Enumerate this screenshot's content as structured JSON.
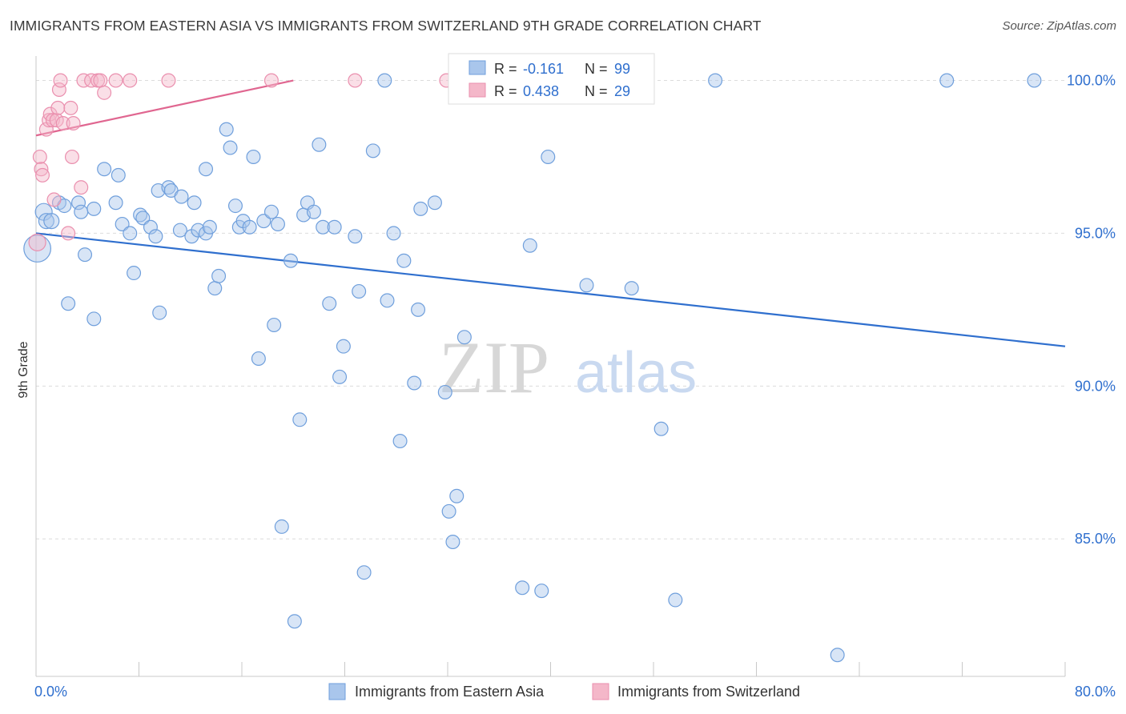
{
  "title": "IMMIGRANTS FROM EASTERN ASIA VS IMMIGRANTS FROM SWITZERLAND 9TH GRADE CORRELATION CHART",
  "source": "Source: ZipAtlas.com",
  "watermark": {
    "zip": "ZIP",
    "atlas": "atlas"
  },
  "colors": {
    "blue_fill": "#a9c6ec",
    "blue_stroke": "#6f9fdc",
    "blue_line": "#2f6fce",
    "blue_text": "#2f6fce",
    "pink_fill": "#f4b7c9",
    "pink_stroke": "#ea8fae",
    "pink_line": "#e06690",
    "pink_text": "#e06690",
    "grid": "#dcdcdc",
    "axis_label": "#2f6fce"
  },
  "stats_box": {
    "rows": [
      {
        "r_label": "R = ",
        "r_value": "-0.161",
        "n_label": "N = ",
        "n_value": "99",
        "color": "blue"
      },
      {
        "r_label": "R = ",
        "r_value": "0.438",
        "n_label": "N = ",
        "n_value": "29",
        "color": "pink"
      }
    ]
  },
  "chart_data": {
    "type": "scatter",
    "title": "IMMIGRANTS FROM EASTERN ASIA VS IMMIGRANTS FROM SWITZERLAND 9TH GRADE CORRELATION CHART",
    "xlabel": "",
    "ylabel": "9th Grade",
    "xlim": [
      0,
      80
    ],
    "ylim": [
      80.5,
      100.8
    ],
    "x_tick_labels": [
      "0.0%",
      "80.0%"
    ],
    "y_ticks": [
      85,
      90,
      95,
      100
    ],
    "y_tick_labels": [
      "85.0%",
      "90.0%",
      "95.0%",
      "100.0%"
    ],
    "grid": true,
    "legend_position": "bottom-center",
    "series": [
      {
        "name": "Immigrants from Eastern Asia",
        "color": "blue",
        "trend": {
          "x": [
            0,
            80
          ],
          "y": [
            95.0,
            91.3
          ]
        },
        "points": [
          [
            0.1,
            94.5,
            16
          ],
          [
            0.6,
            95.7,
            10
          ],
          [
            0.8,
            95.4,
            9
          ],
          [
            1.2,
            95.4,
            9
          ],
          [
            1.8,
            96.0,
            8
          ],
          [
            2.2,
            95.9,
            8
          ],
          [
            3.3,
            96.0,
            8
          ],
          [
            3.5,
            95.7,
            8
          ],
          [
            4.5,
            95.8,
            8
          ],
          [
            2.5,
            92.7,
            8
          ],
          [
            3.8,
            94.3,
            8
          ],
          [
            4.5,
            92.2,
            8
          ],
          [
            5.3,
            97.1,
            8
          ],
          [
            6.4,
            96.9,
            8
          ],
          [
            6.2,
            96.0,
            8
          ],
          [
            6.7,
            95.3,
            8
          ],
          [
            7.3,
            95.0,
            8
          ],
          [
            7.6,
            93.7,
            8
          ],
          [
            8.1,
            95.6,
            8
          ],
          [
            8.3,
            95.5,
            8
          ],
          [
            8.9,
            95.2,
            8
          ],
          [
            9.3,
            94.9,
            8
          ],
          [
            9.6,
            92.4,
            8
          ],
          [
            9.5,
            96.4,
            8
          ],
          [
            10.3,
            96.5,
            8
          ],
          [
            10.5,
            96.4,
            8
          ],
          [
            11.3,
            96.2,
            8
          ],
          [
            11.2,
            95.1,
            8
          ],
          [
            12.1,
            94.9,
            8
          ],
          [
            12.3,
            96.0,
            8
          ],
          [
            12.6,
            95.1,
            8
          ],
          [
            13.2,
            95.0,
            8
          ],
          [
            13.2,
            97.1,
            8
          ],
          [
            13.5,
            95.2,
            8
          ],
          [
            13.9,
            93.2,
            8
          ],
          [
            14.2,
            93.6,
            8
          ],
          [
            14.8,
            98.4,
            8
          ],
          [
            15.1,
            97.8,
            8
          ],
          [
            15.5,
            95.9,
            8
          ],
          [
            15.8,
            95.2,
            8
          ],
          [
            16.1,
            95.4,
            8
          ],
          [
            16.6,
            95.2,
            8
          ],
          [
            16.9,
            97.5,
            8
          ],
          [
            17.3,
            90.9,
            8
          ],
          [
            17.7,
            95.4,
            8
          ],
          [
            18.3,
            95.7,
            8
          ],
          [
            18.5,
            92.0,
            8
          ],
          [
            18.8,
            95.3,
            8
          ],
          [
            19.8,
            94.1,
            8
          ],
          [
            20.5,
            88.9,
            8
          ],
          [
            20.8,
            95.6,
            8
          ],
          [
            21.1,
            96.0,
            8
          ],
          [
            21.6,
            95.7,
            8
          ],
          [
            22.0,
            97.9,
            8
          ],
          [
            22.3,
            95.2,
            8
          ],
          [
            22.8,
            92.7,
            8
          ],
          [
            23.2,
            95.2,
            8
          ],
          [
            23.6,
            90.3,
            8
          ],
          [
            23.9,
            91.3,
            8
          ],
          [
            24.8,
            94.9,
            8
          ],
          [
            25.1,
            93.1,
            8
          ],
          [
            26.2,
            97.7,
            8
          ],
          [
            27.1,
            100.0,
            8
          ],
          [
            27.3,
            92.8,
            8
          ],
          [
            27.8,
            95.0,
            8
          ],
          [
            28.6,
            94.1,
            8
          ],
          [
            29.4,
            90.1,
            8
          ],
          [
            29.7,
            92.5,
            8
          ],
          [
            29.9,
            95.8,
            8
          ],
          [
            31.0,
            96.0,
            8
          ],
          [
            31.8,
            89.8,
            8
          ],
          [
            32.1,
            85.9,
            8
          ],
          [
            32.4,
            84.9,
            8
          ],
          [
            32.7,
            86.4,
            8
          ],
          [
            33.3,
            91.6,
            8
          ],
          [
            34.0,
            100.0,
            8
          ],
          [
            37.0,
            100.0,
            8
          ],
          [
            37.8,
            83.4,
            8
          ],
          [
            38.4,
            94.6,
            8
          ],
          [
            39.3,
            83.3,
            8
          ],
          [
            39.8,
            97.5,
            8
          ],
          [
            42.8,
            93.3,
            8
          ],
          [
            43.3,
            100.0,
            8
          ],
          [
            46.3,
            93.2,
            8
          ],
          [
            48.6,
            88.6,
            8
          ],
          [
            49.7,
            83.0,
            8
          ],
          [
            52.8,
            100.0,
            8
          ],
          [
            62.3,
            81.2,
            8
          ],
          [
            70.8,
            100.0,
            8
          ],
          [
            77.6,
            100.0,
            8
          ],
          [
            28.3,
            88.2,
            8
          ],
          [
            25.5,
            83.9,
            8
          ],
          [
            20.1,
            82.3,
            8
          ],
          [
            19.1,
            85.4,
            8
          ]
        ]
      },
      {
        "name": "Immigrants from Switzerland",
        "color": "pink",
        "trend": {
          "x": [
            0,
            20
          ],
          "y": [
            98.2,
            100.0
          ]
        },
        "points": [
          [
            0.1,
            94.7,
            10
          ],
          [
            0.3,
            97.5,
            8
          ],
          [
            0.4,
            97.1,
            8
          ],
          [
            0.5,
            96.9,
            8
          ],
          [
            0.8,
            98.4,
            8
          ],
          [
            1.0,
            98.7,
            8
          ],
          [
            1.1,
            98.9,
            8
          ],
          [
            1.3,
            98.7,
            8
          ],
          [
            1.4,
            96.1,
            8
          ],
          [
            1.6,
            98.7,
            8
          ],
          [
            1.7,
            99.1,
            8
          ],
          [
            1.8,
            99.7,
            8
          ],
          [
            1.9,
            100.0,
            8
          ],
          [
            2.1,
            98.6,
            8
          ],
          [
            2.5,
            95.0,
            8
          ],
          [
            2.7,
            99.1,
            8
          ],
          [
            2.8,
            97.5,
            8
          ],
          [
            2.9,
            98.6,
            8
          ],
          [
            3.5,
            96.5,
            8
          ],
          [
            3.7,
            100.0,
            8
          ],
          [
            4.3,
            100.0,
            8
          ],
          [
            4.8,
            100.0,
            8
          ],
          [
            5.0,
            100.0,
            8
          ],
          [
            5.3,
            99.6,
            8
          ],
          [
            6.2,
            100.0,
            8
          ],
          [
            7.3,
            100.0,
            8
          ],
          [
            10.3,
            100.0,
            8
          ],
          [
            18.3,
            100.0,
            8
          ],
          [
            24.8,
            100.0,
            8
          ],
          [
            31.9,
            100.0,
            8
          ]
        ]
      }
    ]
  }
}
